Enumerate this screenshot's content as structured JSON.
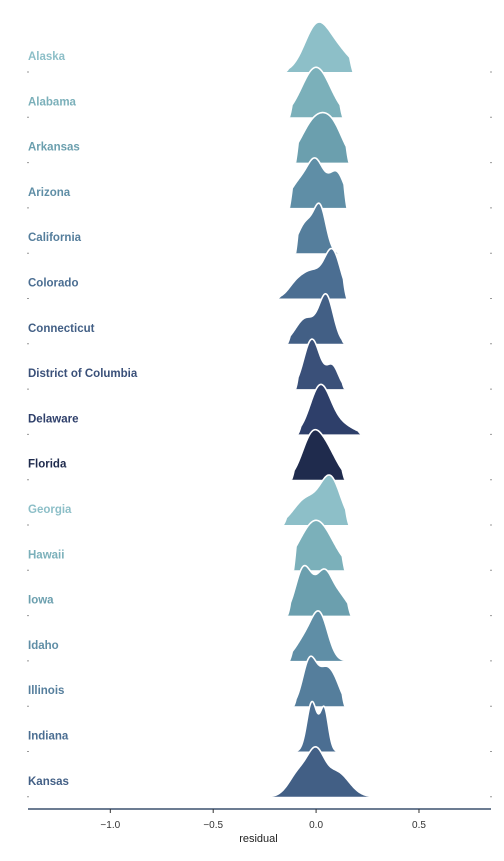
{
  "chart_data": {
    "type": "ridgeline",
    "title": "",
    "xlabel": "residual",
    "ylabel": "",
    "xlim": [
      -1.4,
      0.85
    ],
    "x_ticks": [
      -1.0,
      -0.5,
      0.0,
      0.5
    ],
    "x_tick_labels": [
      "−1.0",
      "−0.5",
      "0.0",
      "0.5"
    ],
    "grid": false,
    "legend": "none",
    "series": [
      {
        "name": "Alaska",
        "color": "#8dbfc8",
        "peaks": [
          [
            0.0,
            0.06,
            1.0
          ],
          [
            0.1,
            0.07,
            0.5
          ]
        ],
        "range": [
          -0.15,
          0.18
        ]
      },
      {
        "name": "Alabama",
        "color": "#7bb0ba",
        "peaks": [
          [
            0.0,
            0.07,
            1.0
          ]
        ],
        "range": [
          -0.13,
          0.13
        ]
      },
      {
        "name": "Arkansas",
        "color": "#6b9fae",
        "peaks": [
          [
            0.0,
            0.07,
            1.0
          ],
          [
            0.09,
            0.05,
            0.5
          ]
        ],
        "range": [
          -0.1,
          0.16
        ]
      },
      {
        "name": "Arizona",
        "color": "#5f8ea6",
        "peaks": [
          [
            -0.08,
            0.05,
            0.6
          ],
          [
            0.0,
            0.04,
            1.0
          ],
          [
            0.1,
            0.04,
            0.85
          ]
        ],
        "range": [
          -0.13,
          0.15
        ]
      },
      {
        "name": "California",
        "color": "#557e9c",
        "peaks": [
          [
            -0.05,
            0.04,
            0.7
          ],
          [
            0.02,
            0.03,
            1.0
          ]
        ],
        "range": [
          -0.1,
          0.12
        ]
      },
      {
        "name": "Colorado",
        "color": "#4b6e92",
        "peaks": [
          [
            -0.1,
            0.04,
            0.25
          ],
          [
            -0.02,
            0.05,
            0.55
          ],
          [
            0.08,
            0.04,
            1.0
          ]
        ],
        "range": [
          -0.19,
          0.15
        ]
      },
      {
        "name": "Connecticut",
        "color": "#425f85",
        "peaks": [
          [
            -0.05,
            0.05,
            0.55
          ],
          [
            0.05,
            0.035,
            1.0
          ]
        ],
        "range": [
          -0.14,
          0.14
        ]
      },
      {
        "name": "District of Columbia",
        "color": "#3a5079",
        "peaks": [
          [
            -0.02,
            0.04,
            1.0
          ],
          [
            0.08,
            0.03,
            0.45
          ]
        ],
        "range": [
          -0.1,
          0.14
        ]
      },
      {
        "name": "Delaware",
        "color": "#2e3f6a",
        "peaks": [
          [
            0.02,
            0.05,
            1.0
          ],
          [
            0.12,
            0.06,
            0.2
          ]
        ],
        "range": [
          -0.09,
          0.22
        ]
      },
      {
        "name": "Florida",
        "color": "#1f2b4d",
        "peaks": [
          [
            -0.02,
            0.05,
            1.0
          ],
          [
            0.06,
            0.05,
            0.55
          ]
        ],
        "range": [
          -0.12,
          0.14
        ]
      },
      {
        "name": "Georgia",
        "color": "#8dbfc8",
        "peaks": [
          [
            -0.05,
            0.06,
            0.55
          ],
          [
            0.07,
            0.05,
            1.0
          ]
        ],
        "range": [
          -0.16,
          0.16
        ]
      },
      {
        "name": "Hawaii",
        "color": "#7bb0ba",
        "peaks": [
          [
            0.0,
            0.08,
            1.0
          ]
        ],
        "range": [
          -0.11,
          0.14
        ]
      },
      {
        "name": "Iowa",
        "color": "#6b9fae",
        "peaks": [
          [
            -0.06,
            0.04,
            0.85
          ],
          [
            0.04,
            0.04,
            0.75
          ],
          [
            0.12,
            0.04,
            0.3
          ]
        ],
        "range": [
          -0.14,
          0.17
        ]
      },
      {
        "name": "Idaho",
        "color": "#5f8ea6",
        "peaks": [
          [
            -0.05,
            0.05,
            0.55
          ],
          [
            0.02,
            0.04,
            1.0
          ]
        ],
        "range": [
          -0.13,
          0.16
        ]
      },
      {
        "name": "Illinois",
        "color": "#557e9c",
        "peaks": [
          [
            -0.03,
            0.035,
            1.0
          ],
          [
            0.05,
            0.035,
            0.7
          ],
          [
            0.1,
            0.03,
            0.3
          ]
        ],
        "range": [
          -0.11,
          0.14
        ]
      },
      {
        "name": "Indiana",
        "color": "#4b6e92",
        "peaks": [
          [
            -0.02,
            0.025,
            1.0
          ],
          [
            0.04,
            0.02,
            0.85
          ]
        ],
        "range": [
          -0.13,
          0.11
        ]
      },
      {
        "name": "Kansas",
        "color": "#425f85",
        "peaks": [
          [
            -0.08,
            0.05,
            0.6
          ],
          [
            0.0,
            0.04,
            0.9
          ],
          [
            0.1,
            0.06,
            0.6
          ]
        ],
        "range": [
          -0.26,
          0.28
        ]
      }
    ]
  }
}
